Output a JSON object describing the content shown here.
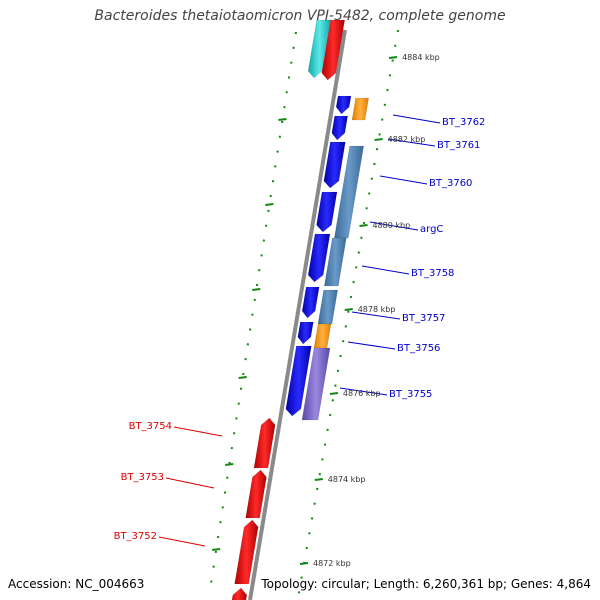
{
  "title": "Bacteroides thetaiotaomicron VPI-5482, complete genome",
  "accession": "Accession: NC_004663",
  "topology": "Topology: circular; Length: 6,260,361 bp; Genes: 4,864",
  "tick_labels": [
    "4884 kbp",
    "4882 kbp",
    "4880 kbp",
    "4878 kbp",
    "4876 kbp",
    "4874 kbp",
    "4872 kbp"
  ],
  "gene_labels_right": [
    "BT_3762",
    "BT_3761",
    "BT_3760",
    "argC",
    "BT_3758",
    "BT_3757",
    "BT_3756",
    "BT_3755"
  ],
  "gene_labels_left": [
    "BT_3754",
    "BT_3753",
    "BT_3752"
  ],
  "colors": {
    "backbone": "#8a8a8a",
    "forward_cds": "#0000ee",
    "reverse_cds": "#ee0000",
    "steelblue": "#4f7fb0",
    "orange": "#ff9900",
    "purple": "#7b68c8",
    "cyan": "#22cccc",
    "tick": "#118811",
    "label_blue": "#0000cc",
    "label_red": "#dd0000"
  }
}
